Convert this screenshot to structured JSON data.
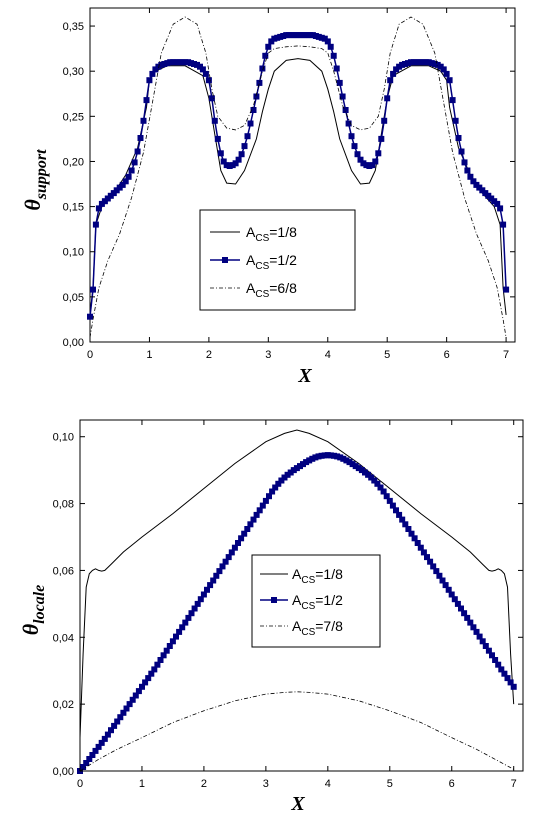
{
  "chart_data": [
    {
      "type": "line",
      "xlabel": "X",
      "ylabel": "θ",
      "ylabel_sub": "support",
      "xlim": [
        0,
        7.15
      ],
      "ylim": [
        0,
        0.37
      ],
      "xticks": [
        "0",
        "1",
        "2",
        "3",
        "4",
        "5",
        "6",
        "7"
      ],
      "yticks": [
        "0,00",
        "0,05",
        "0,10",
        "0,15",
        "0,20",
        "0,25",
        "0,30",
        "0,35"
      ],
      "legend": {
        "position": "center",
        "entries": [
          {
            "main": "A",
            "sub": "CS",
            "tail": "=1/8"
          },
          {
            "main": "A",
            "sub": "CS",
            "tail": "=1/2"
          },
          {
            "main": "A",
            "sub": "CS",
            "tail": "=6/8"
          }
        ]
      },
      "series": [
        {
          "style": "solid",
          "color": "#000000",
          "x": [
            0,
            0.05,
            0.1,
            0.2,
            0.4,
            0.6,
            0.8,
            0.95,
            1.0,
            1.1,
            1.3,
            1.6,
            1.9,
            2.0,
            2.1,
            2.2,
            2.3,
            2.45,
            2.6,
            2.8,
            2.9,
            3.0,
            3.1,
            3.3,
            3.5,
            3.7,
            3.9,
            4.0,
            4.1,
            4.2,
            4.4,
            4.55,
            4.7,
            4.8,
            4.9,
            5.0,
            5.1,
            5.4,
            5.7,
            5.9,
            6.0,
            6.05,
            6.2,
            6.4,
            6.6,
            6.8,
            6.9,
            6.95,
            7.0
          ],
          "y": [
            0.03,
            0.06,
            0.13,
            0.15,
            0.165,
            0.185,
            0.215,
            0.26,
            0.29,
            0.3,
            0.306,
            0.306,
            0.295,
            0.27,
            0.23,
            0.19,
            0.176,
            0.175,
            0.19,
            0.225,
            0.255,
            0.28,
            0.3,
            0.312,
            0.314,
            0.312,
            0.3,
            0.28,
            0.255,
            0.225,
            0.19,
            0.175,
            0.176,
            0.19,
            0.23,
            0.27,
            0.295,
            0.306,
            0.306,
            0.3,
            0.29,
            0.26,
            0.215,
            0.185,
            0.165,
            0.15,
            0.13,
            0.06,
            0.03
          ]
        },
        {
          "style": "square-markers",
          "color": "#000080",
          "x": [
            0,
            0.05,
            0.1,
            0.15,
            0.2,
            0.25,
            0.3,
            0.35,
            0.4,
            0.45,
            0.5,
            0.55,
            0.6,
            0.65,
            0.7,
            0.75,
            0.8,
            0.85,
            0.9,
            0.95,
            1.0,
            1.05,
            1.1,
            1.15,
            1.2,
            1.25,
            1.3,
            1.35,
            1.4,
            1.45,
            1.5,
            1.55,
            1.6,
            1.65,
            1.7,
            1.75,
            1.8,
            1.85,
            1.9,
            1.95,
            2.0,
            2.05,
            2.1,
            2.15,
            2.2,
            2.25,
            2.3,
            2.35,
            2.4,
            2.45,
            2.5,
            2.55,
            2.6,
            2.65,
            2.7,
            2.75,
            2.8,
            2.85,
            2.9,
            2.95,
            3.0,
            3.05,
            3.1,
            3.15,
            3.2,
            3.25,
            3.3,
            3.35,
            3.4,
            3.45,
            3.5,
            3.55,
            3.6,
            3.65,
            3.7,
            3.75,
            3.8,
            3.85,
            3.9,
            3.95,
            4.0,
            4.05,
            4.1,
            4.15,
            4.2,
            4.25,
            4.3,
            4.35,
            4.4,
            4.45,
            4.5,
            4.55,
            4.6,
            4.65,
            4.7,
            4.75,
            4.8,
            4.85,
            4.9,
            4.95,
            5.0,
            5.05,
            5.1,
            5.15,
            5.2,
            5.25,
            5.3,
            5.35,
            5.4,
            5.45,
            5.5,
            5.55,
            5.6,
            5.65,
            5.7,
            5.75,
            5.8,
            5.85,
            5.9,
            5.95,
            6.0,
            6.05,
            6.1,
            6.15,
            6.2,
            6.25,
            6.3,
            6.35,
            6.4,
            6.45,
            6.5,
            6.55,
            6.6,
            6.65,
            6.7,
            6.75,
            6.8,
            6.85,
            6.9,
            6.95,
            7.0
          ],
          "y": [
            0.028,
            0.058,
            0.13,
            0.148,
            0.153,
            0.156,
            0.159,
            0.162,
            0.165,
            0.168,
            0.171,
            0.174,
            0.178,
            0.183,
            0.19,
            0.199,
            0.211,
            0.226,
            0.245,
            0.268,
            0.29,
            0.297,
            0.302,
            0.305,
            0.307,
            0.308,
            0.309,
            0.31,
            0.31,
            0.31,
            0.31,
            0.31,
            0.31,
            0.31,
            0.309,
            0.308,
            0.307,
            0.305,
            0.302,
            0.297,
            0.29,
            0.27,
            0.245,
            0.225,
            0.209,
            0.2,
            0.196,
            0.195,
            0.196,
            0.198,
            0.202,
            0.208,
            0.217,
            0.228,
            0.242,
            0.257,
            0.272,
            0.287,
            0.303,
            0.317,
            0.327,
            0.333,
            0.336,
            0.337,
            0.338,
            0.339,
            0.34,
            0.34,
            0.34,
            0.34,
            0.34,
            0.34,
            0.34,
            0.34,
            0.34,
            0.34,
            0.339,
            0.338,
            0.337,
            0.336,
            0.333,
            0.327,
            0.317,
            0.303,
            0.287,
            0.272,
            0.257,
            0.242,
            0.228,
            0.217,
            0.208,
            0.202,
            0.198,
            0.196,
            0.195,
            0.196,
            0.2,
            0.209,
            0.225,
            0.245,
            0.27,
            0.29,
            0.297,
            0.302,
            0.305,
            0.307,
            0.308,
            0.309,
            0.31,
            0.31,
            0.31,
            0.31,
            0.31,
            0.31,
            0.31,
            0.309,
            0.308,
            0.307,
            0.305,
            0.302,
            0.297,
            0.29,
            0.268,
            0.245,
            0.226,
            0.211,
            0.199,
            0.19,
            0.183,
            0.178,
            0.174,
            0.171,
            0.168,
            0.165,
            0.162,
            0.159,
            0.156,
            0.153,
            0.148,
            0.13,
            0.058
          ]
        },
        {
          "style": "dash-dot",
          "color": "#000000",
          "x": [
            0,
            0.05,
            0.15,
            0.3,
            0.5,
            0.7,
            0.9,
            1.05,
            1.2,
            1.4,
            1.6,
            1.8,
            1.95,
            2.05,
            2.15,
            2.3,
            2.45,
            2.6,
            2.75,
            2.9,
            3.0,
            3.1,
            3.3,
            3.5,
            3.7,
            3.9,
            4.0,
            4.1,
            4.25,
            4.4,
            4.55,
            4.7,
            4.85,
            4.95,
            5.05,
            5.2,
            5.4,
            5.6,
            5.8,
            5.95,
            6.1,
            6.3,
            6.5,
            6.7,
            6.85,
            6.95,
            7.0
          ],
          "y": [
            0.005,
            0.025,
            0.06,
            0.09,
            0.12,
            0.16,
            0.21,
            0.265,
            0.32,
            0.352,
            0.36,
            0.352,
            0.32,
            0.28,
            0.25,
            0.237,
            0.235,
            0.24,
            0.262,
            0.3,
            0.32,
            0.325,
            0.327,
            0.328,
            0.327,
            0.325,
            0.32,
            0.3,
            0.262,
            0.24,
            0.235,
            0.237,
            0.25,
            0.28,
            0.32,
            0.352,
            0.36,
            0.352,
            0.32,
            0.265,
            0.21,
            0.16,
            0.12,
            0.09,
            0.06,
            0.025,
            0.005
          ]
        }
      ]
    },
    {
      "type": "line",
      "xlabel": "X",
      "ylabel": "θ",
      "ylabel_sub": "locale",
      "xlim": [
        0,
        7.15
      ],
      "ylim": [
        0,
        0.105
      ],
      "xticks": [
        "0",
        "1",
        "2",
        "3",
        "4",
        "5",
        "6",
        "7"
      ],
      "yticks": [
        "0,00",
        "0,02",
        "0,04",
        "0,06",
        "0,08",
        "0,10"
      ],
      "legend": {
        "position": "center-right",
        "entries": [
          {
            "main": "A",
            "sub": "CS",
            "tail": "=1/8"
          },
          {
            "main": "A",
            "sub": "CS",
            "tail": "=1/2"
          },
          {
            "main": "A",
            "sub": "CS",
            "tail": "=7/8"
          }
        ]
      },
      "series": [
        {
          "style": "solid",
          "color": "#000000",
          "x": [
            0,
            0.05,
            0.1,
            0.15,
            0.2,
            0.25,
            0.3,
            0.35,
            0.4,
            0.5,
            0.7,
            1.0,
            1.5,
            2.0,
            2.5,
            3.0,
            3.3,
            3.5,
            3.7,
            4.0,
            4.5,
            5.0,
            5.5,
            6.0,
            6.3,
            6.5,
            6.6,
            6.65,
            6.7,
            6.75,
            6.8,
            6.85,
            6.9,
            6.95,
            7.0
          ],
          "y": [
            0.01,
            0.035,
            0.055,
            0.059,
            0.06,
            0.0605,
            0.06,
            0.0598,
            0.06,
            0.0618,
            0.0655,
            0.07,
            0.077,
            0.0845,
            0.092,
            0.0985,
            0.101,
            0.102,
            0.101,
            0.0985,
            0.092,
            0.0845,
            0.077,
            0.07,
            0.0655,
            0.0618,
            0.06,
            0.0598,
            0.06,
            0.0605,
            0.06,
            0.059,
            0.055,
            0.035,
            0.02
          ]
        },
        {
          "style": "square-markers",
          "color": "#000080",
          "x": [
            0.0,
            0.05,
            0.1,
            0.15,
            0.2,
            0.25,
            0.3,
            0.35,
            0.4,
            0.45,
            0.5,
            0.55,
            0.6,
            0.65,
            0.7,
            0.75,
            0.8,
            0.85,
            0.9,
            0.95,
            1.0,
            1.05,
            1.1,
            1.15,
            1.2,
            1.25,
            1.3,
            1.35,
            1.4,
            1.45,
            1.5,
            1.55,
            1.6,
            1.65,
            1.7,
            1.75,
            1.8,
            1.85,
            1.9,
            1.95,
            2.0,
            2.05,
            2.1,
            2.15,
            2.2,
            2.25,
            2.3,
            2.35,
            2.4,
            2.45,
            2.5,
            2.55,
            2.6,
            2.65,
            2.7,
            2.75,
            2.8,
            2.85,
            2.9,
            2.95,
            3.0,
            3.05,
            3.1,
            3.15,
            3.2,
            3.25,
            3.3,
            3.35,
            3.4,
            3.45,
            3.5,
            3.55,
            3.6,
            3.65,
            3.7,
            3.75,
            3.8,
            3.85,
            3.9,
            3.95,
            4.0,
            4.05,
            4.1,
            4.15,
            4.2,
            4.25,
            4.3,
            4.35,
            4.4,
            4.45,
            4.5,
            4.55,
            4.6,
            4.65,
            4.7,
            4.75,
            4.8,
            4.85,
            4.9,
            4.95,
            5.0,
            5.05,
            5.1,
            5.15,
            5.2,
            5.25,
            5.3,
            5.35,
            5.4,
            5.45,
            5.5,
            5.55,
            5.6,
            5.65,
            5.7,
            5.75,
            5.8,
            5.85,
            5.9,
            5.95,
            6.0,
            6.05,
            6.1,
            6.15,
            6.2,
            6.25,
            6.3,
            6.35,
            6.4,
            6.45,
            6.5,
            6.55,
            6.6,
            6.65,
            6.7,
            6.75,
            6.8,
            6.85,
            6.9,
            6.95,
            7.0
          ],
          "y": [
            0.0,
            0.0012,
            0.0024,
            0.0036,
            0.0048,
            0.006,
            0.0072,
            0.0084,
            0.0096,
            0.0109,
            0.0122,
            0.0135,
            0.0148,
            0.0161,
            0.0174,
            0.0187,
            0.02,
            0.0213,
            0.0226,
            0.0239,
            0.0252,
            0.0265,
            0.0278,
            0.0291,
            0.0304,
            0.0318,
            0.0332,
            0.0346,
            0.036,
            0.0374,
            0.0388,
            0.0402,
            0.0416,
            0.043,
            0.0444,
            0.0458,
            0.0472,
            0.0486,
            0.05,
            0.0514,
            0.0528,
            0.0542,
            0.0556,
            0.057,
            0.0584,
            0.0598,
            0.0612,
            0.0626,
            0.064,
            0.0654,
            0.0668,
            0.0682,
            0.0696,
            0.071,
            0.0724,
            0.0738,
            0.0752,
            0.0766,
            0.078,
            0.0794,
            0.0808,
            0.0822,
            0.0836,
            0.0848,
            0.0859,
            0.0869,
            0.0878,
            0.0886,
            0.0893,
            0.09,
            0.0906,
            0.0912,
            0.0918,
            0.0924,
            0.0929,
            0.0934,
            0.0938,
            0.0941,
            0.0943,
            0.0944,
            0.0945,
            0.0944,
            0.0943,
            0.0941,
            0.0938,
            0.0934,
            0.0929,
            0.0924,
            0.0918,
            0.0912,
            0.0906,
            0.09,
            0.0893,
            0.0886,
            0.0878,
            0.0869,
            0.0859,
            0.0848,
            0.0836,
            0.0822,
            0.0808,
            0.0794,
            0.078,
            0.0766,
            0.0752,
            0.0738,
            0.0724,
            0.071,
            0.0696,
            0.0682,
            0.0668,
            0.0654,
            0.064,
            0.0626,
            0.0612,
            0.0598,
            0.0584,
            0.057,
            0.0556,
            0.0542,
            0.0528,
            0.0514,
            0.05,
            0.0486,
            0.0472,
            0.0458,
            0.0444,
            0.043,
            0.0416,
            0.0402,
            0.0388,
            0.0374,
            0.036,
            0.0346,
            0.0332,
            0.0318,
            0.0304,
            0.0291,
            0.0278,
            0.0265,
            0.0252
          ]
        },
        {
          "style": "dash-dot",
          "color": "#000000",
          "x": [
            0,
            0.3,
            0.6,
            1.0,
            1.5,
            2.0,
            2.5,
            3.0,
            3.3,
            3.5,
            3.7,
            4.0,
            4.5,
            5.0,
            5.5,
            6.0,
            6.4,
            6.7,
            7.0
          ],
          "y": [
            0.0,
            0.0035,
            0.0065,
            0.01,
            0.0145,
            0.018,
            0.021,
            0.023,
            0.0235,
            0.0237,
            0.0235,
            0.023,
            0.021,
            0.018,
            0.0145,
            0.01,
            0.0065,
            0.0035,
            0.0005
          ]
        }
      ]
    }
  ]
}
